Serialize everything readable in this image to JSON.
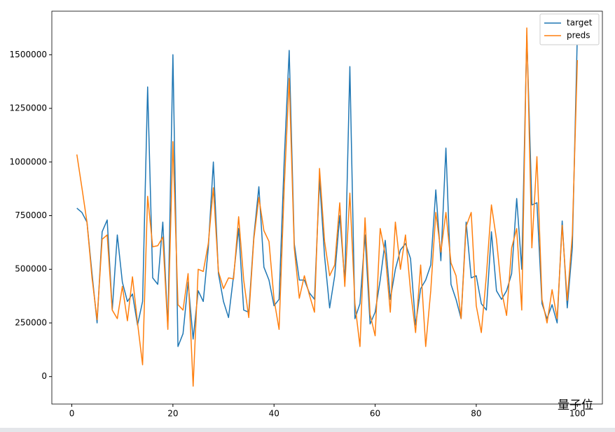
{
  "chart_data": {
    "type": "line",
    "x": [
      1,
      2,
      3,
      4,
      5,
      6,
      7,
      8,
      9,
      10,
      11,
      12,
      13,
      14,
      15,
      16,
      17,
      18,
      19,
      20,
      21,
      22,
      23,
      24,
      25,
      26,
      27,
      28,
      29,
      30,
      31,
      32,
      33,
      34,
      35,
      36,
      37,
      38,
      39,
      40,
      41,
      42,
      43,
      44,
      45,
      46,
      47,
      48,
      49,
      50,
      51,
      52,
      53,
      54,
      55,
      56,
      57,
      58,
      59,
      60,
      61,
      62,
      63,
      64,
      65,
      66,
      67,
      68,
      69,
      70,
      71,
      72,
      73,
      74,
      75,
      76,
      77,
      78,
      79,
      80,
      81,
      82,
      83,
      84,
      85,
      86,
      87,
      88,
      89,
      90,
      91,
      92,
      93,
      94,
      95,
      96,
      97,
      98,
      99,
      100
    ],
    "series": [
      {
        "name": "target",
        "color": "#1f77b4",
        "values": [
          785000,
          765000,
          720000,
          480000,
          250000,
          675000,
          730000,
          310000,
          660000,
          440000,
          350000,
          385000,
          240000,
          350000,
          1350000,
          460000,
          430000,
          720000,
          230000,
          1500000,
          140000,
          200000,
          440000,
          175000,
          400000,
          350000,
          600000,
          1000000,
          480000,
          350000,
          275000,
          470000,
          690000,
          310000,
          300000,
          650000,
          885000,
          510000,
          450000,
          330000,
          360000,
          1000000,
          1520000,
          620000,
          450000,
          450000,
          390000,
          360000,
          920000,
          560000,
          320000,
          470000,
          750000,
          440000,
          1445000,
          270000,
          340000,
          660000,
          245000,
          300000,
          450000,
          635000,
          360000,
          500000,
          590000,
          620000,
          550000,
          240000,
          410000,
          450000,
          520000,
          870000,
          540000,
          1065000,
          430000,
          360000,
          270000,
          720000,
          460000,
          470000,
          340000,
          310000,
          675000,
          400000,
          360000,
          400000,
          480000,
          830000,
          500000,
          1590000,
          800000,
          810000,
          340000,
          270000,
          335000,
          250000,
          725000,
          320000,
          600000,
          1600000
        ]
      },
      {
        "name": "preds",
        "color": "#ff7f0e",
        "values": [
          1035000,
          880000,
          720000,
          460000,
          265000,
          640000,
          660000,
          310000,
          270000,
          420000,
          260000,
          465000,
          250000,
          55000,
          840000,
          605000,
          610000,
          650000,
          220000,
          1095000,
          335000,
          310000,
          480000,
          -45000,
          500000,
          490000,
          620000,
          880000,
          490000,
          410000,
          460000,
          455000,
          745000,
          450000,
          275000,
          640000,
          835000,
          680000,
          630000,
          360000,
          220000,
          870000,
          1390000,
          600000,
          365000,
          470000,
          380000,
          300000,
          970000,
          630000,
          470000,
          520000,
          810000,
          420000,
          855000,
          340000,
          140000,
          740000,
          290000,
          190000,
          690000,
          570000,
          300000,
          720000,
          500000,
          660000,
          400000,
          205000,
          520000,
          140000,
          400000,
          765000,
          580000,
          765000,
          530000,
          470000,
          270000,
          700000,
          765000,
          330000,
          205000,
          470000,
          800000,
          640000,
          400000,
          285000,
          600000,
          690000,
          310000,
          1625000,
          600000,
          1025000,
          360000,
          250000,
          405000,
          270000,
          705000,
          355000,
          660000,
          1475000
        ]
      }
    ],
    "xlim": [
      -3.95,
      104.95
    ],
    "ylim": [
      -128000,
      1703000
    ],
    "xticks": [
      0,
      20,
      40,
      60,
      80,
      100
    ],
    "yticks": [
      0,
      250000,
      500000,
      750000,
      1000000,
      1250000,
      1500000
    ],
    "legend": "upper right",
    "grid": false,
    "watermark": "量子位"
  }
}
